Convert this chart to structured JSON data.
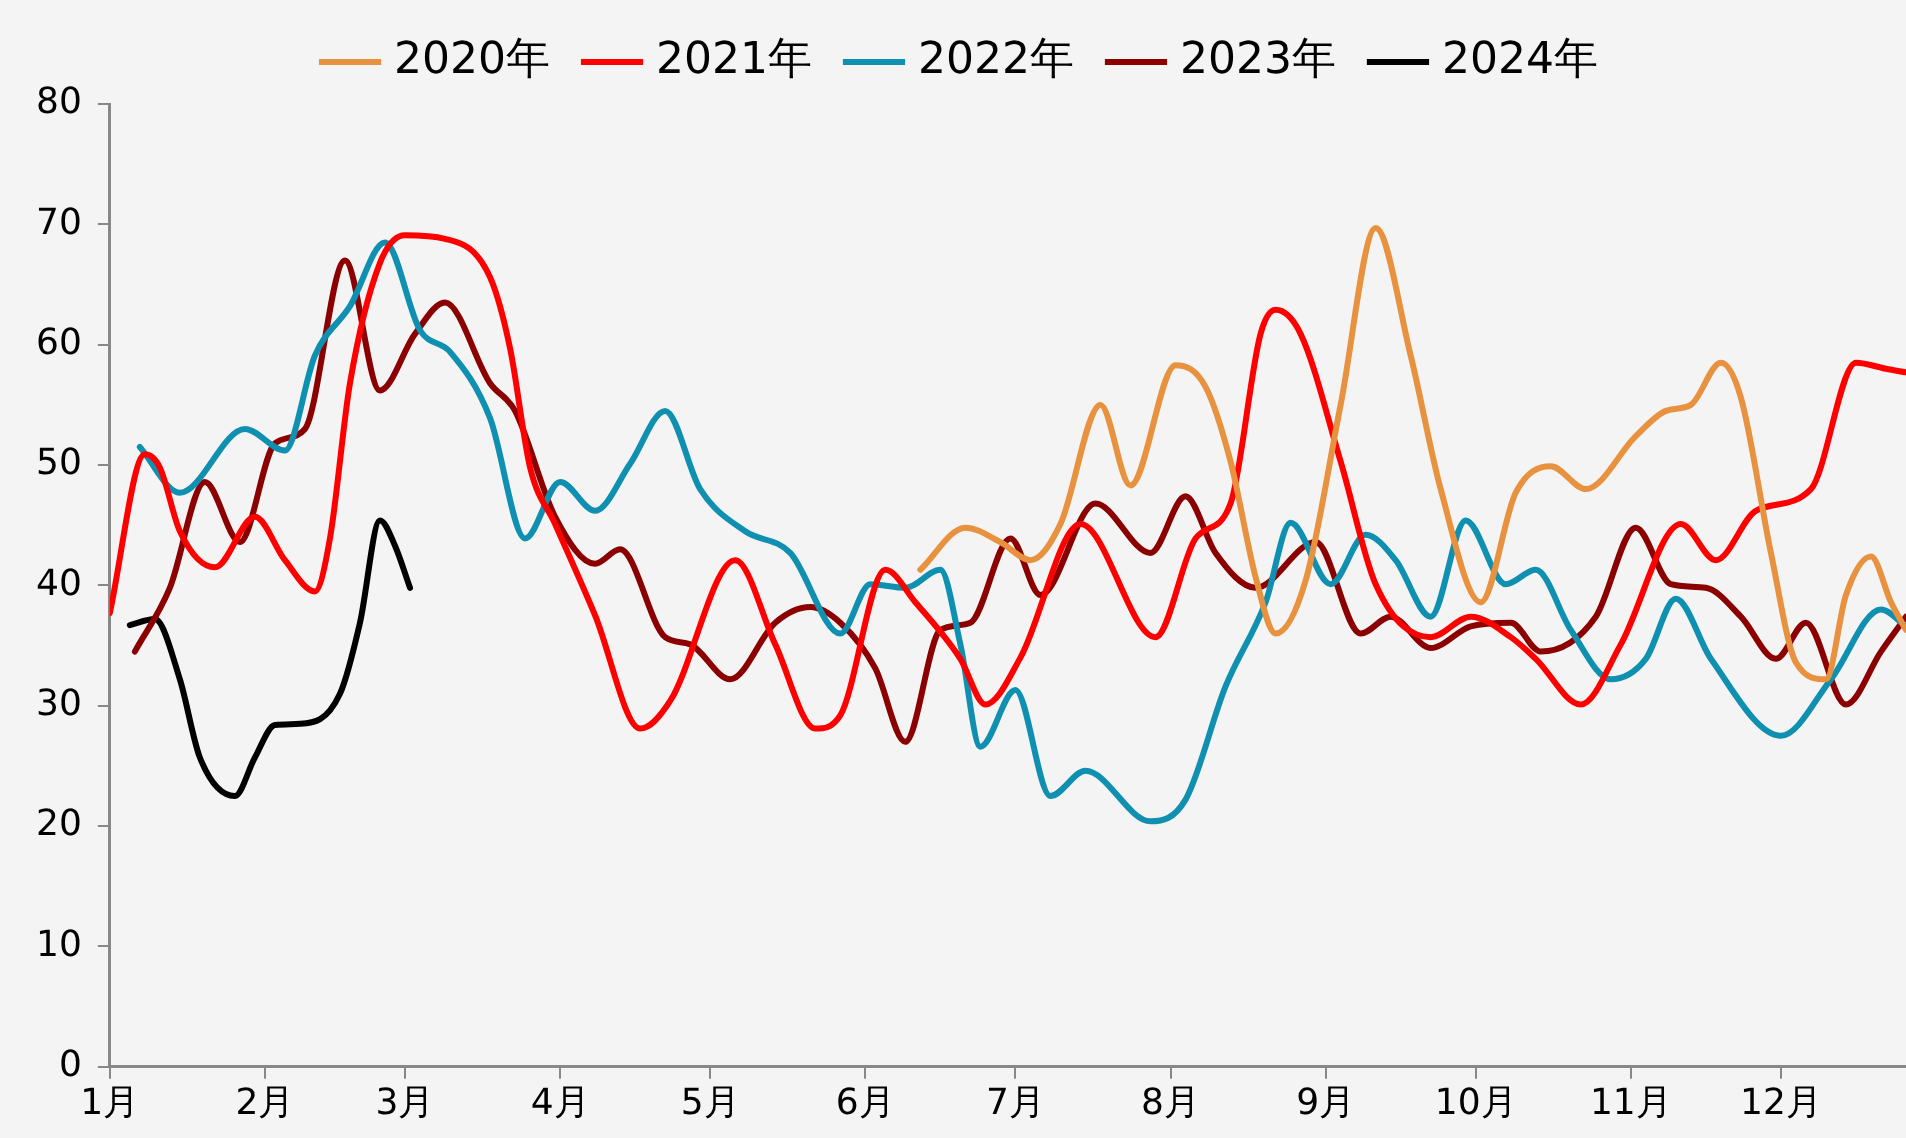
{
  "chart_data": {
    "type": "line",
    "legend": "top",
    "grid": false,
    "marker": "none",
    "line_style": "solid",
    "xlim": [
      "--01-01",
      "--12-26"
    ],
    "xticks": [
      {
        "value": "--01-01",
        "label": "1月"
      },
      {
        "value": "--02-01",
        "label": "2月"
      },
      {
        "value": "--03-01",
        "label": "3月"
      },
      {
        "value": "--04-01",
        "label": "4月"
      },
      {
        "value": "--05-01",
        "label": "5月"
      },
      {
        "value": "--06-01",
        "label": "6月"
      },
      {
        "value": "--07-01",
        "label": "7月"
      },
      {
        "value": "--08-01",
        "label": "8月"
      },
      {
        "value": "--09-01",
        "label": "9月"
      },
      {
        "value": "--10-01",
        "label": "10月"
      },
      {
        "value": "--11-01",
        "label": "11月"
      },
      {
        "value": "--12-01",
        "label": "12月"
      }
    ],
    "ylim": [
      0,
      80
    ],
    "yticks": [
      0,
      10,
      20,
      30,
      40,
      50,
      60,
      70,
      80
    ],
    "series": [
      {
        "name": "2020年",
        "color": "#e8913f",
        "x": [
          "--06-12",
          "--06-21",
          "--06-28",
          "--07-04",
          "--07-10",
          "--07-18",
          "--07-24",
          "--08-02",
          "--08-08",
          "--08-13",
          "--08-18",
          "--08-22",
          "--08-28",
          "--09-04",
          "--09-11",
          "--09-18",
          "--09-24",
          "--10-02",
          "--10-09",
          "--10-16",
          "--10-23",
          "--11-02",
          "--11-08",
          "--11-13",
          "--11-19",
          "--11-23",
          "--11-29",
          "--12-04",
          "--12-10",
          "--12-14",
          "--12-19",
          "--12-23",
          "--12-26"
        ],
        "values": [
          41.3,
          44.8,
          43.6,
          42.1,
          45.1,
          55.0,
          48.3,
          58.3,
          56.5,
          50.3,
          40.7,
          36.0,
          40.4,
          55.0,
          69.7,
          59.1,
          48.0,
          38.6,
          47.7,
          49.9,
          48.0,
          52.4,
          54.5,
          55.0,
          58.5,
          55.6,
          42.7,
          33.6,
          32.2,
          39.2,
          42.4,
          38.6,
          36.3
        ]
      },
      {
        "name": "2021年",
        "color": "#ff0000",
        "x": [
          "--01-01",
          "--01-08",
          "--01-11",
          "--01-15",
          "--01-22",
          "--01-30",
          "--02-05",
          "--02-11",
          "--02-14",
          "--02-18",
          "--02-24",
          "--03-01",
          "--03-09",
          "--03-18",
          "--03-22",
          "--03-26",
          "--03-31",
          "--04-08",
          "--04-17",
          "--04-23",
          "--05-06",
          "--05-14",
          "--05-22",
          "--05-27",
          "--06-05",
          "--06-11",
          "--06-20",
          "--06-25",
          "--07-02",
          "--07-14",
          "--07-29",
          "--08-06",
          "--08-13",
          "--08-19",
          "--08-22",
          "--08-27",
          "--09-04",
          "--09-11",
          "--09-22",
          "--09-30",
          "--10-08",
          "--10-13",
          "--10-22",
          "--10-30",
          "--11-11",
          "--11-18",
          "--11-26",
          "--12-07",
          "--12-16",
          "--12-22",
          "--12-26"
        ],
        "values": [
          37.7,
          50.9,
          49.8,
          44.5,
          41.5,
          45.7,
          42.1,
          39.5,
          43.9,
          56.8,
          66.8,
          69.1,
          68.8,
          65.6,
          59.7,
          49.8,
          45.1,
          37.5,
          28.1,
          30.4,
          42.1,
          35.1,
          28.1,
          29.2,
          41.3,
          38.6,
          33.9,
          30.1,
          34.0,
          45.1,
          35.7,
          43.9,
          46.8,
          60.9,
          62.9,
          60.9,
          50.3,
          40.1,
          35.7,
          37.4,
          35.7,
          33.9,
          30.1,
          35.1,
          45.1,
          42.1,
          46.2,
          48.0,
          58.5,
          58.0,
          57.7
        ]
      },
      {
        "name": "2022年",
        "color": "#1090b0",
        "x": [
          "--01-07",
          "--01-15",
          "--01-28",
          "--02-05",
          "--02-11",
          "--02-18",
          "--02-25",
          "--03-04",
          "--03-10",
          "--03-18",
          "--03-25",
          "--04-01",
          "--04-08",
          "--04-15",
          "--04-22",
          "--04-29",
          "--05-08",
          "--05-17",
          "--05-27",
          "--06-02",
          "--06-09",
          "--06-16",
          "--06-20",
          "--06-24",
          "--07-01",
          "--07-08",
          "--07-15",
          "--07-28",
          "--08-04",
          "--08-12",
          "--08-20",
          "--08-25",
          "--09-02",
          "--09-09",
          "--09-15",
          "--09-22",
          "--09-29",
          "--10-07",
          "--10-13",
          "--10-20",
          "--10-28",
          "--11-04",
          "--11-10",
          "--11-17",
          "--12-01",
          "--12-11",
          "--12-21",
          "--12-26"
        ],
        "values": [
          51.5,
          47.7,
          53.0,
          51.2,
          59.1,
          63.2,
          68.5,
          61.2,
          59.4,
          53.9,
          43.9,
          48.6,
          46.2,
          50.1,
          54.5,
          48.0,
          44.5,
          42.7,
          36.0,
          40.1,
          39.8,
          41.3,
          35.1,
          26.6,
          31.3,
          22.5,
          24.6,
          20.4,
          22.2,
          31.6,
          38.6,
          45.2,
          40.1,
          44.2,
          42.1,
          37.4,
          45.4,
          40.1,
          41.3,
          36.3,
          32.2,
          33.9,
          38.9,
          33.9,
          27.5,
          32.2,
          38.0,
          36.6
        ]
      },
      {
        "name": "2023年",
        "color": "#8b0000",
        "x": [
          "--01-06",
          "--01-13",
          "--01-20",
          "--01-27",
          "--02-03",
          "--02-09",
          "--02-17",
          "--02-24",
          "--03-03",
          "--03-09",
          "--03-18",
          "--03-23",
          "--03-31",
          "--04-08",
          "--04-13",
          "--04-22",
          "--04-27",
          "--05-05",
          "--05-14",
          "--05-21",
          "--05-27",
          "--06-03",
          "--06-09",
          "--06-16",
          "--06-22",
          "--06-30",
          "--07-06",
          "--07-17",
          "--07-28",
          "--08-04",
          "--08-10",
          "--08-18",
          "--08-30",
          "--09-08",
          "--09-14",
          "--09-22",
          "--09-30",
          "--10-08",
          "--10-14",
          "--10-25",
          "--11-02",
          "--11-09",
          "--11-16",
          "--11-23",
          "--11-30",
          "--12-06",
          "--12-14",
          "--12-21",
          "--12-26"
        ],
        "values": [
          34.5,
          39.8,
          48.6,
          43.6,
          51.8,
          53.0,
          67.0,
          56.2,
          60.9,
          63.5,
          56.8,
          54.5,
          45.7,
          41.8,
          43.0,
          35.7,
          35.1,
          32.2,
          36.9,
          38.2,
          36.9,
          33.1,
          27.0,
          36.3,
          36.9,
          43.9,
          39.2,
          46.8,
          42.7,
          47.4,
          42.7,
          39.8,
          43.6,
          36.0,
          37.4,
          34.8,
          36.6,
          36.9,
          34.5,
          37.4,
          44.8,
          40.1,
          39.8,
          37.4,
          33.9,
          36.9,
          30.1,
          34.5,
          37.4
        ]
      },
      {
        "name": "2024年",
        "color": "#000000",
        "x": [
          "--01-05",
          "--01-10",
          "--01-15",
          "--01-19",
          "--01-26",
          "--01-30",
          "--02-03",
          "--02-08",
          "--02-16",
          "--02-20",
          "--02-24",
          "--02-27",
          "--03-02"
        ],
        "values": [
          36.7,
          37.2,
          32.2,
          25.7,
          22.5,
          25.7,
          28.4,
          28.5,
          31.0,
          36.9,
          45.4,
          43.3,
          39.8
        ]
      }
    ]
  }
}
